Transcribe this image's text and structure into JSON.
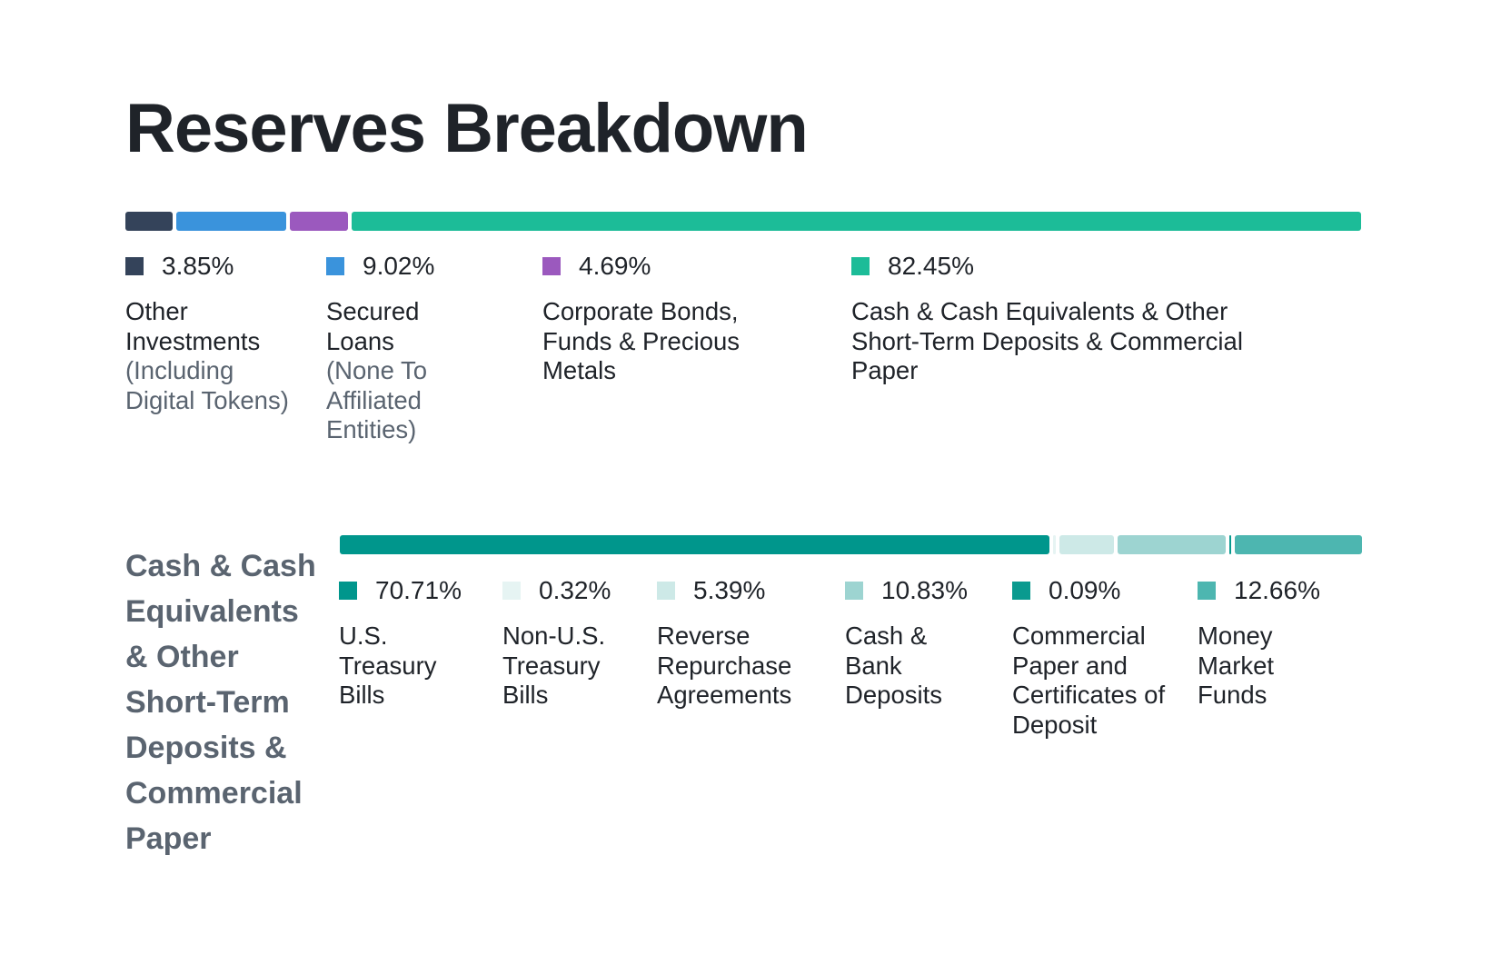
{
  "title": "Reserves Breakdown",
  "colors": {
    "text": "#1f2329",
    "muted": "#5a6470"
  },
  "chart_data": [
    {
      "type": "bar",
      "orientation": "stacked-horizontal",
      "value_unit": "%",
      "segments": [
        {
          "value": 3.85,
          "pct_label": "3.85%",
          "label": "Other Investments",
          "sublabel": "(Including Digital Tokens)",
          "color": "#34435a"
        },
        {
          "value": 9.02,
          "pct_label": "9.02%",
          "label": "Secured Loans",
          "sublabel": "(None To Affiliated Entities)",
          "color": "#3a93dc"
        },
        {
          "value": 4.69,
          "pct_label": "4.69%",
          "label": "Corporate Bonds, Funds & Precious Metals",
          "sublabel": "",
          "color": "#9b59be"
        },
        {
          "value": 82.45,
          "pct_label": "82.45%",
          "label": "Cash & Cash Equivalents & Other Short-Term Deposits & Commercial Paper",
          "sublabel": "",
          "color": "#1cbc98"
        }
      ]
    },
    {
      "type": "bar",
      "orientation": "stacked-horizontal",
      "value_unit": "%",
      "section_label": "Cash & Cash Equivalents & Other Short-Term Deposits & Commercial Paper",
      "segments": [
        {
          "value": 70.71,
          "pct_label": "70.71%",
          "label": "U.S. Treasury Bills",
          "color": "#00968c"
        },
        {
          "value": 0.32,
          "pct_label": "0.32%",
          "label": "Non-U.S. Treasury Bills",
          "color": "#e6f4f3"
        },
        {
          "value": 5.39,
          "pct_label": "5.39%",
          "label": "Reverse Repurchase Agreements",
          "color": "#cde9e7"
        },
        {
          "value": 10.83,
          "pct_label": "10.83%",
          "label": "Cash & Bank Deposits",
          "color": "#9dd4d1"
        },
        {
          "value": 0.09,
          "pct_label": "0.09%",
          "label": "Commercial Paper and Certificates of Deposit",
          "color": "#0a9a8f"
        },
        {
          "value": 12.66,
          "pct_label": "12.66%",
          "label": "Money Market Funds",
          "color": "#4db6b0"
        }
      ]
    }
  ]
}
